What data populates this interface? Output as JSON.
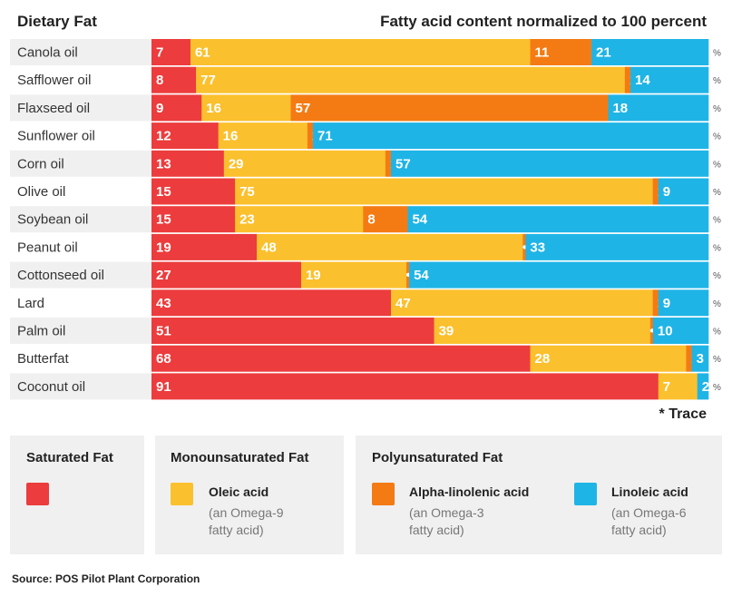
{
  "chart_data": {
    "type": "bar",
    "orientation": "horizontal",
    "stacked": true,
    "title": "Dietary Fat",
    "subtitle": "Fatty acid content normalized to 100 percent",
    "unit_label": "%",
    "xlim": [
      0,
      100
    ],
    "categories": [
      "Canola oil",
      "Safflower oil",
      "Flaxseed oil",
      "Sunflower oil",
      "Corn oil",
      "Olive oil",
      "Soybean oil",
      "Peanut oil",
      "Cottonseed oil",
      "Lard",
      "Palm oil",
      "Butterfat",
      "Coconut oil"
    ],
    "series": [
      {
        "name": "Saturated Fat",
        "color": "#ec3c3d",
        "values": [
          7,
          8,
          9,
          12,
          13,
          15,
          15,
          19,
          27,
          43,
          51,
          68,
          91
        ],
        "labels": [
          "7",
          "8",
          "9",
          "12",
          "13",
          "15",
          "15",
          "19",
          "27",
          "43",
          "51",
          "68",
          "91"
        ]
      },
      {
        "name": "Oleic acid",
        "color": "#fbc02d",
        "values": [
          61,
          77,
          16,
          16,
          29,
          75,
          23,
          48,
          19,
          47,
          39,
          28,
          7
        ],
        "labels": [
          "61",
          "77",
          "16",
          "16",
          "29",
          "75",
          "23",
          "48",
          "19",
          "47",
          "39",
          "28",
          "7"
        ]
      },
      {
        "name": "Alpha-linolenic acid",
        "color": "#f47b13",
        "values": [
          11,
          1,
          57,
          1,
          1,
          1,
          8,
          0.5,
          0.5,
          1,
          0.5,
          1,
          0
        ],
        "labels": [
          "11",
          "1",
          "57",
          "1",
          "1",
          "1",
          "8",
          "•",
          "•",
          "1",
          "•",
          "1",
          ""
        ]
      },
      {
        "name": "Linoleic acid",
        "color": "#1fb4e6",
        "values": [
          21,
          14,
          18,
          71,
          57,
          9,
          54,
          33,
          54,
          9,
          10,
          3,
          2
        ],
        "labels": [
          "21",
          "14",
          "18",
          "71",
          "57",
          "9",
          "54",
          "33",
          "54",
          "9",
          "10",
          "3",
          "2"
        ]
      }
    ],
    "note": "* Trace",
    "source": "Source: POS Pilot Plant Corporation"
  },
  "legend": {
    "saturated": {
      "heading": "Saturated Fat",
      "color": "#ec3c3d"
    },
    "mono": {
      "heading": "Monounsaturated Fat",
      "item_title": "Oleic acid",
      "item_sub": "(an Omega-9 fatty acid)",
      "color": "#fbc02d"
    },
    "poly": {
      "heading": "Polyunsaturated Fat",
      "items": [
        {
          "title": "Alpha-linolenic acid",
          "sub": "(an Omega-3 fatty acid)",
          "color": "#f47b13"
        },
        {
          "title": "Linoleic acid",
          "sub": "(an Omega-6 fatty acid)",
          "color": "#1fb4e6"
        }
      ]
    }
  }
}
